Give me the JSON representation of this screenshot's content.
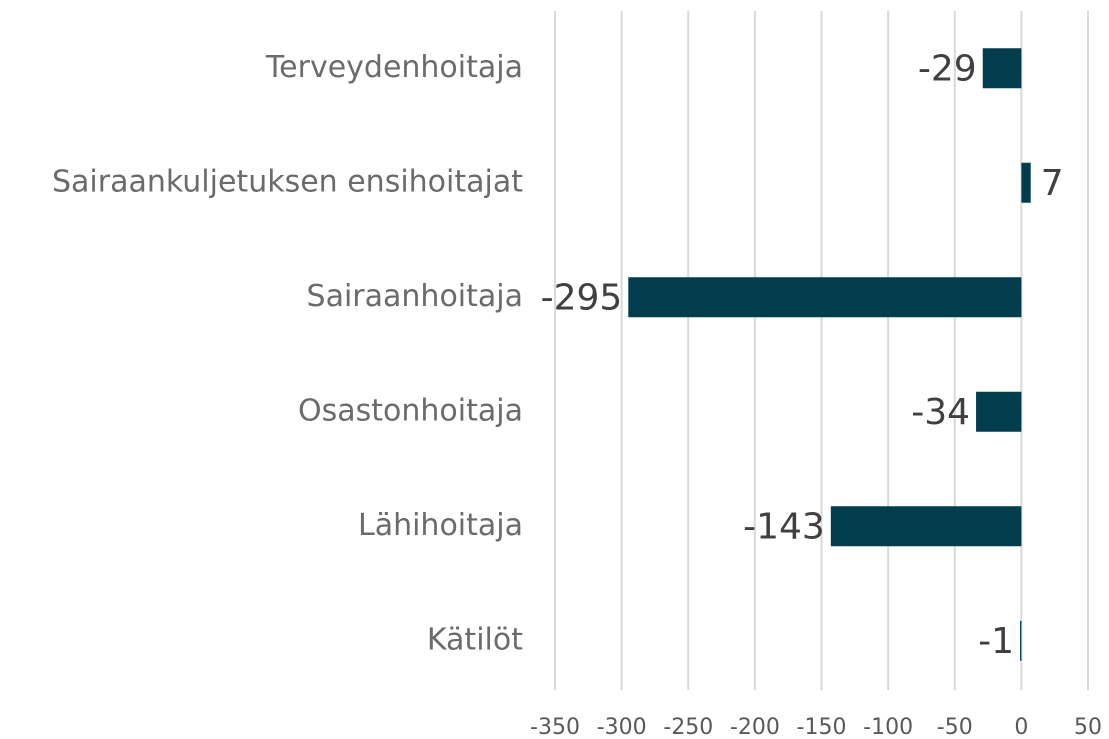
{
  "chart_data": {
    "type": "bar",
    "orientation": "horizontal",
    "categories": [
      "Terveydenhoitaja",
      "Sairaankuljetuksen ensihoitajat",
      "Sairaanhoitaja",
      "Osastonhoitaja",
      "Lähihoitaja",
      "Kätilöt"
    ],
    "values": [
      -29,
      7,
      -295,
      -34,
      -143,
      -1
    ],
    "color": "#013d4c",
    "xlim": [
      -350,
      50
    ],
    "xticks": [
      -350,
      -300,
      -250,
      -200,
      -150,
      -100,
      -50,
      0,
      50
    ],
    "grid": true
  }
}
